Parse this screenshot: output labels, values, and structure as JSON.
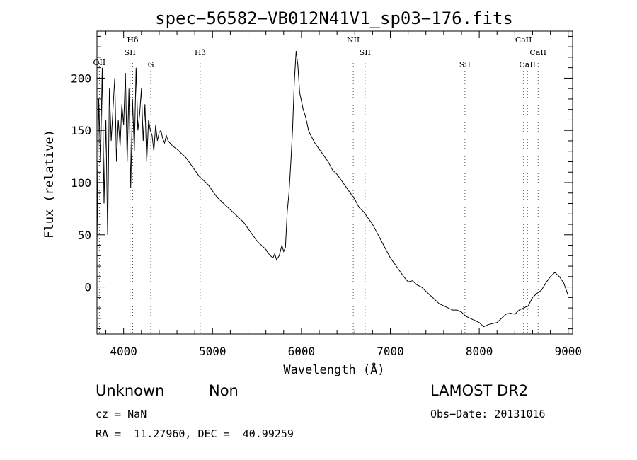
{
  "chart_data": {
    "type": "line",
    "title": "spec−56582−VB012N41V1_sp03−176.fits",
    "xlabel": "Wavelength (Å)",
    "ylabel": "Flux (relative)",
    "xlim": [
      3700,
      9050
    ],
    "ylim": [
      -45,
      245
    ],
    "xticks": [
      4000,
      5000,
      6000,
      7000,
      8000,
      9000
    ],
    "yticks": [
      0,
      50,
      100,
      150,
      200
    ],
    "grid": false,
    "series": [
      {
        "x": [
          3700,
          3720,
          3740,
          3760,
          3780,
          3800,
          3820,
          3840,
          3860,
          3880,
          3900,
          3920,
          3940,
          3960,
          3980,
          4000,
          4020,
          4040,
          4060,
          4080,
          4100,
          4120,
          4140,
          4160,
          4180,
          4200,
          4220,
          4240,
          4260,
          4280,
          4300,
          4320,
          4340,
          4360,
          4380,
          4400,
          4420,
          4440,
          4460,
          4480,
          4500,
          4550,
          4600,
          4650,
          4700,
          4750,
          4800,
          4850,
          4900,
          4950,
          5000,
          5050,
          5100,
          5150,
          5200,
          5250,
          5300,
          5350,
          5400,
          5450,
          5500,
          5550,
          5600,
          5620,
          5650,
          5680,
          5700,
          5720,
          5750,
          5780,
          5800,
          5820,
          5840,
          5860,
          5880,
          5900,
          5920,
          5940,
          5960,
          5980,
          6000,
          6020,
          6040,
          6060,
          6080,
          6100,
          6150,
          6200,
          6250,
          6300,
          6350,
          6400,
          6450,
          6500,
          6550,
          6600,
          6650,
          6700,
          6750,
          6800,
          6850,
          6900,
          6950,
          7000,
          7050,
          7100,
          7150,
          7200,
          7250,
          7300,
          7350,
          7400,
          7450,
          7500,
          7550,
          7600,
          7650,
          7700,
          7750,
          7800,
          7850,
          7900,
          7950,
          8000,
          8050,
          8100,
          8150,
          8200,
          8250,
          8300,
          8350,
          8400,
          8450,
          8500,
          8550,
          8600,
          8650,
          8700,
          8750,
          8800,
          8850,
          8900,
          8950,
          9000
        ],
        "y": [
          40,
          180,
          120,
          210,
          80,
          160,
          50,
          190,
          140,
          170,
          200,
          120,
          160,
          135,
          175,
          155,
          205,
          120,
          190,
          95,
          180,
          130,
          210,
          150,
          165,
          190,
          140,
          175,
          120,
          160,
          150,
          145,
          130,
          155,
          140,
          148,
          150,
          142,
          138,
          145,
          140,
          135,
          132,
          128,
          124,
          118,
          112,
          106,
          102,
          98,
          92,
          86,
          82,
          78,
          74,
          70,
          66,
          62,
          56,
          50,
          44,
          40,
          36,
          33,
          30,
          28,
          32,
          26,
          30,
          40,
          34,
          38,
          72,
          90,
          118,
          150,
          196,
          226,
          212,
          186,
          178,
          170,
          165,
          158,
          150,
          146,
          138,
          132,
          126,
          120,
          112,
          108,
          102,
          96,
          90,
          84,
          76,
          72,
          66,
          60,
          52,
          44,
          36,
          28,
          22,
          16,
          10,
          5,
          6,
          2,
          0,
          -4,
          -8,
          -12,
          -16,
          -18,
          -20,
          -22,
          -22,
          -24,
          -28,
          -30,
          -32,
          -34,
          -38,
          -36,
          -35,
          -34,
          -30,
          -26,
          -25,
          -26,
          -22,
          -20,
          -18,
          -10,
          -6,
          -3,
          4,
          10,
          14,
          10,
          4,
          -8
        ]
      }
    ],
    "lines": [
      {
        "label": "OII",
        "x": 3727
      },
      {
        "label": "Hδ",
        "x": 4102
      },
      {
        "label": "SII",
        "x": 4072
      },
      {
        "label": "G",
        "x": 4305
      },
      {
        "label": "Hβ",
        "x": 4861
      },
      {
        "label": "NII",
        "x": 6583
      },
      {
        "label": "SII",
        "x": 6716
      },
      {
        "label": "SII",
        "x": 7839
      },
      {
        "label": "CaII",
        "x": 8498
      },
      {
        "label": "CaII",
        "x": 8542
      },
      {
        "label": "CaII",
        "x": 8662
      }
    ]
  },
  "info": {
    "class": "Unknown",
    "subclass": "Non",
    "cz": "cz = NaN",
    "coords": "RA =  11.27960, DEC =  40.99259",
    "survey": "LAMOST DR2",
    "obs_date": "Obs−Date: 20131016"
  }
}
